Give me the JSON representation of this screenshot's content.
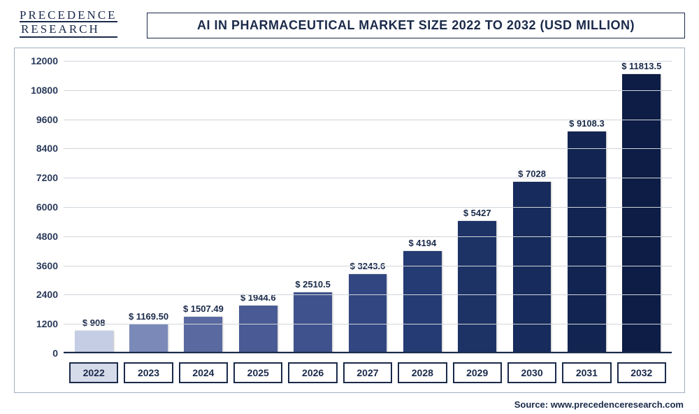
{
  "logo": {
    "line1": "PRECEDENCE",
    "line2": "RESEARCH"
  },
  "title": "AI IN PHARMACEUTICAL MARKET SIZE 2022 TO 2032 (USD MILLION)",
  "chart": {
    "type": "bar",
    "ylim": [
      0,
      12000
    ],
    "yticks": [
      0,
      1200,
      2400,
      3600,
      4800,
      6000,
      7200,
      8400,
      9600,
      10800,
      12000
    ],
    "grid_color": "#d0d4db",
    "background_color": "#ffffff",
    "axis_color": "#1a2a4a",
    "label_fontsize": 14,
    "value_fontsize": 13,
    "title_fontsize": 18,
    "bar_width": 0.78,
    "categories": [
      "2022",
      "2023",
      "2024",
      "2025",
      "2026",
      "2027",
      "2028",
      "2029",
      "2030",
      "2031",
      "2032"
    ],
    "value_labels": [
      "$ 908",
      "$ 1169.50",
      "$ 1507.49",
      "$ 1944.6",
      "$ 2510.5",
      "$ 3243.6",
      "$ 4194",
      "$ 5427",
      "$ 7028",
      "$ 9108.3",
      "$ 11813.5"
    ],
    "values": [
      908,
      1169.5,
      1507.49,
      1944.6,
      2510.5,
      3243.6,
      4194,
      5427,
      7028,
      9108.3,
      11813.5
    ],
    "bar_colors": [
      "#c4cde4",
      "#7a89b8",
      "#5a6aa0",
      "#495a94",
      "#3f528d",
      "#324781",
      "#253b73",
      "#1d3366",
      "#172c5c",
      "#122451",
      "#0d1d46"
    ],
    "highlight_category": "2022",
    "highlight_bg": "#d6dbea"
  },
  "source": "Source: www.precedenceresearch.com"
}
